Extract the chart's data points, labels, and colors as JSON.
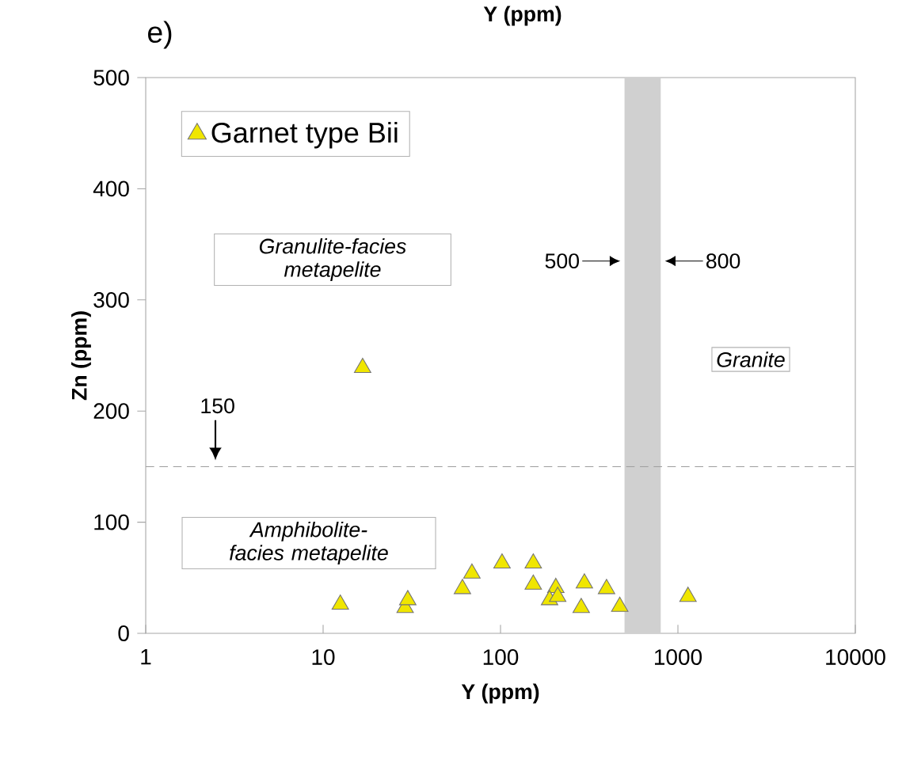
{
  "chart_data": {
    "type": "scatter",
    "title": "e)",
    "xlabel": "Y (ppm)",
    "ylabel": "Zn (ppm)",
    "log": "x",
    "xlim": [
      1,
      10000
    ],
    "xticks": [
      1,
      10,
      100,
      1000,
      10000
    ],
    "ylim": [
      0,
      500
    ],
    "yticks": [
      0,
      100,
      200,
      300,
      400,
      500
    ],
    "grid": false,
    "legend": "top left",
    "marker": "triangle",
    "series": [
      {
        "name": "Garnet type Bii",
        "color": "#f0e600",
        "x": [
          12.5,
          29,
          30,
          61,
          69,
          102,
          153,
          153,
          205,
          189,
          210,
          297,
          285,
          396,
          470,
          1140,
          16.7
        ],
        "values": [
          26,
          23,
          30,
          40,
          54,
          63,
          63,
          44,
          41,
          30,
          33,
          45,
          23,
          40,
          24,
          33,
          239
        ]
      }
    ],
    "bands": [
      {
        "axis": "x",
        "from": 500,
        "to": 800,
        "color": "#d0d0d0"
      }
    ],
    "ref_lines": [
      {
        "axis": "y",
        "value": 150,
        "label": "150",
        "color": "#a0a0a0",
        "line_style": "dashed"
      }
    ],
    "annotations": [
      "Y (ppm)",
      "Granulite-facies metapelite",
      "Amphibolite-facies metapelite",
      "Granite",
      {
        "text": "500",
        "x": 500,
        "y": 335
      },
      {
        "text": "800",
        "x": 800,
        "y": 335
      }
    ]
  }
}
